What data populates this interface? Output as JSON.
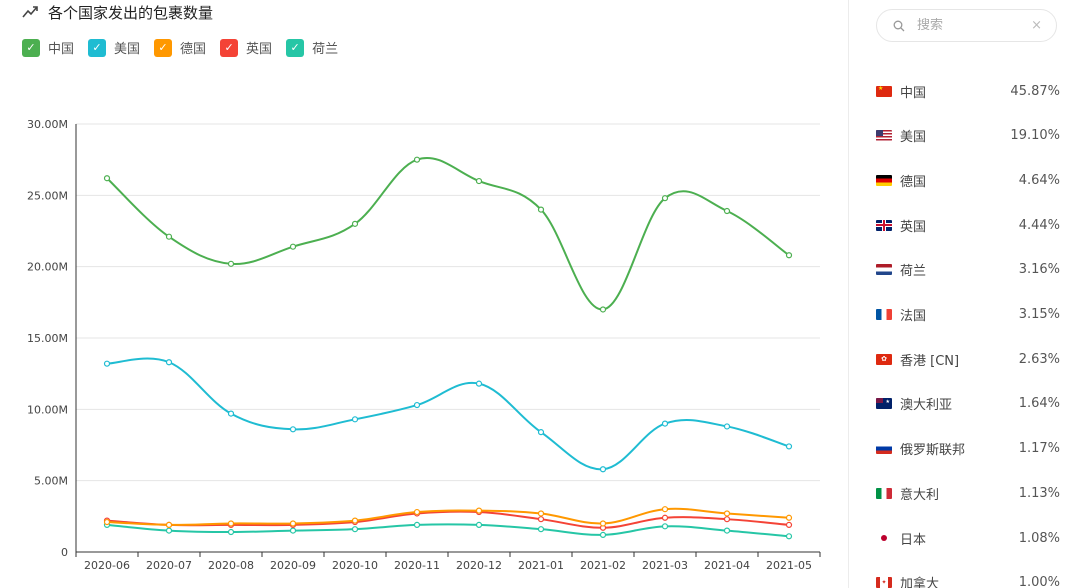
{
  "header": {
    "title": "各个国家发出的包裹数量",
    "icon": "trend-icon"
  },
  "legend": [
    {
      "label": "中国",
      "color": "#4caf50"
    },
    {
      "label": "美国",
      "color": "#1fbcd2"
    },
    {
      "label": "德国",
      "color": "#ff9800"
    },
    {
      "label": "英国",
      "color": "#f44336"
    },
    {
      "label": "荷兰",
      "color": "#26c6a6"
    }
  ],
  "chart_data": {
    "type": "line",
    "title": "各个国家发出的包裹数量",
    "xlabel": "",
    "ylabel": "",
    "categories": [
      "2020-06",
      "2020-07",
      "2020-08",
      "2020-09",
      "2020-10",
      "2020-11",
      "2020-12",
      "2021-01",
      "2021-02",
      "2021-03",
      "2021-04",
      "2021-05"
    ],
    "ylim": [
      0,
      30000000
    ],
    "yticks": [
      0,
      5000000,
      10000000,
      15000000,
      20000000,
      25000000,
      30000000
    ],
    "ytick_labels": [
      "0",
      "5.00M",
      "10.00M",
      "15.00M",
      "20.00M",
      "25.00M",
      "30.00M"
    ],
    "grid": true,
    "legend_position": "top-left",
    "series": [
      {
        "name": "中国",
        "color": "#4caf50",
        "values": [
          26200000,
          22100000,
          20200000,
          21400000,
          23000000,
          27500000,
          26000000,
          24000000,
          17000000,
          24800000,
          23900000,
          20800000
        ]
      },
      {
        "name": "美国",
        "color": "#1fbcd2",
        "values": [
          13200000,
          13300000,
          9700000,
          8600000,
          9300000,
          10300000,
          11800000,
          8400000,
          5800000,
          9000000,
          8800000,
          7400000
        ]
      },
      {
        "name": "德国",
        "color": "#ff9800",
        "values": [
          2100000,
          1900000,
          2000000,
          2000000,
          2200000,
          2800000,
          2900000,
          2700000,
          2000000,
          3000000,
          2700000,
          2400000
        ]
      },
      {
        "name": "英国",
        "color": "#f44336",
        "values": [
          2200000,
          1900000,
          1900000,
          1900000,
          2100000,
          2700000,
          2800000,
          2300000,
          1700000,
          2400000,
          2300000,
          1900000
        ]
      },
      {
        "name": "荷兰",
        "color": "#26c6a6",
        "values": [
          1900000,
          1500000,
          1400000,
          1500000,
          1600000,
          1900000,
          1900000,
          1600000,
          1200000,
          1800000,
          1500000,
          1100000
        ]
      }
    ]
  },
  "search": {
    "placeholder": "搜索",
    "clear": "×"
  },
  "countries": [
    {
      "name": "中国",
      "share": "45.87%",
      "flag": "cn"
    },
    {
      "name": "美国",
      "share": "19.10%",
      "flag": "us"
    },
    {
      "name": "德国",
      "share": "4.64%",
      "flag": "de"
    },
    {
      "name": "英国",
      "share": "4.44%",
      "flag": "gb"
    },
    {
      "name": "荷兰",
      "share": "3.16%",
      "flag": "nl"
    },
    {
      "name": "法国",
      "share": "3.15%",
      "flag": "fr"
    },
    {
      "name": "香港 [CN]",
      "share": "2.63%",
      "flag": "hk"
    },
    {
      "name": "澳大利亚",
      "share": "1.64%",
      "flag": "au"
    },
    {
      "name": "俄罗斯联邦",
      "share": "1.17%",
      "flag": "ru"
    },
    {
      "name": "意大利",
      "share": "1.13%",
      "flag": "it"
    },
    {
      "name": "日本",
      "share": "1.08%",
      "flag": "jp"
    },
    {
      "name": "加拿大",
      "share": "1.00%",
      "flag": "ca"
    }
  ]
}
